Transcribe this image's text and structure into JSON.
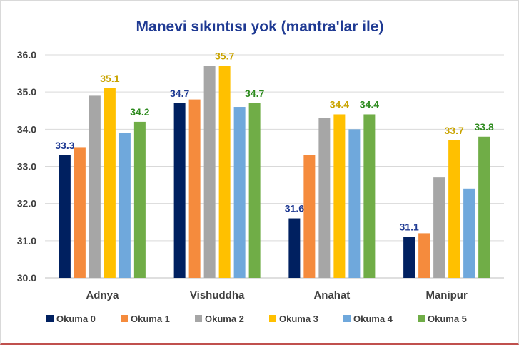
{
  "chart_data": {
    "type": "bar",
    "title": "Manevi sıkıntısı yok (mantra'lar ile)",
    "xlabel": "",
    "ylabel": "",
    "ylim": [
      30.0,
      36.0
    ],
    "yticks": [
      "30.0",
      "31.0",
      "32.0",
      "33.0",
      "34.0",
      "35.0",
      "36.0"
    ],
    "grid": true,
    "legend_position": "bottom",
    "categories": [
      "Adnya",
      "Vishuddha",
      "Anahat",
      "Manipur"
    ],
    "series": [
      {
        "name": "Okuma 0",
        "color": "#002060",
        "values": [
          33.3,
          34.7,
          31.6,
          31.1
        ],
        "labels": [
          "33.3",
          "34.7",
          "31.6",
          "31.1"
        ],
        "label_color": "#1f3a93"
      },
      {
        "name": "Okuma 1",
        "color": "#f58b3d",
        "values": [
          33.5,
          34.8,
          33.3,
          31.2
        ],
        "labels": null
      },
      {
        "name": "Okuma 2",
        "color": "#a6a6a6",
        "values": [
          34.9,
          35.7,
          34.3,
          32.7
        ],
        "labels": null
      },
      {
        "name": "Okuma 3",
        "color": "#ffc000",
        "values": [
          35.1,
          35.7,
          34.4,
          33.7
        ],
        "labels": [
          "35.1",
          "35.7",
          "34.4",
          "33.7"
        ],
        "label_color": "#c9a400"
      },
      {
        "name": "Okuma 4",
        "color": "#6fa8dc",
        "values": [
          33.9,
          34.6,
          34.0,
          32.4
        ],
        "labels": null
      },
      {
        "name": "Okuma 5",
        "color": "#70ad47",
        "values": [
          34.2,
          34.7,
          34.4,
          33.8
        ],
        "labels": [
          "34.2",
          "34.7",
          "34.4",
          "33.8"
        ],
        "label_color": "#2e8b1f"
      }
    ]
  }
}
